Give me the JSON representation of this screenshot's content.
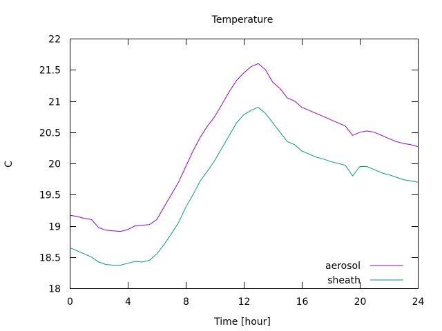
{
  "chart_data": {
    "type": "line",
    "title": "Temperature",
    "xlabel": "Time [hour]",
    "ylabel": "C",
    "xlim": [
      0,
      24
    ],
    "ylim": [
      18,
      22
    ],
    "xticks": [
      0,
      4,
      8,
      12,
      16,
      20,
      24
    ],
    "yticks": [
      18,
      18.5,
      19,
      19.5,
      20,
      20.5,
      21,
      21.5,
      22
    ],
    "grid": false,
    "legend": "bottom-right",
    "series": [
      {
        "name": "aerosol",
        "color": "#9400d3",
        "x": [
          0,
          0.5,
          1,
          1.5,
          2,
          2.5,
          3,
          3.5,
          4,
          4.5,
          5,
          5.5,
          6,
          6.5,
          7,
          7.5,
          8,
          8.5,
          9,
          9.5,
          10,
          10.5,
          11,
          11.5,
          12,
          12.5,
          13,
          13.5,
          14,
          14.5,
          15,
          15.5,
          16,
          16.5,
          17,
          17.5,
          18,
          18.5,
          19,
          19.5,
          20,
          20.5,
          21,
          21.5,
          22,
          22.5,
          23,
          23.5,
          24
        ],
        "values": [
          19.17,
          19.15,
          19.12,
          19.1,
          18.97,
          18.93,
          18.92,
          18.91,
          18.94,
          19.0,
          19.01,
          19.02,
          19.1,
          19.3,
          19.5,
          19.7,
          19.95,
          20.2,
          20.42,
          20.6,
          20.75,
          20.95,
          21.15,
          21.33,
          21.45,
          21.55,
          21.6,
          21.5,
          21.3,
          21.2,
          21.05,
          21.0,
          20.9,
          20.85,
          20.8,
          20.75,
          20.7,
          20.65,
          20.6,
          20.45,
          20.5,
          20.52,
          20.5,
          20.45,
          20.4,
          20.35,
          20.32,
          20.3,
          20.27
        ]
      },
      {
        "name": "sheath",
        "color": "#009e73",
        "x": [
          0,
          0.5,
          1,
          1.5,
          2,
          2.5,
          3,
          3.5,
          4,
          4.5,
          5,
          5.5,
          6,
          6.5,
          7,
          7.5,
          8,
          8.5,
          9,
          9.5,
          10,
          10.5,
          11,
          11.5,
          12,
          12.5,
          13,
          13.5,
          14,
          14.5,
          15,
          15.5,
          16,
          16.5,
          17,
          17.5,
          18,
          18.5,
          19,
          19.5,
          20,
          20.5,
          21,
          21.5,
          22,
          22.5,
          23,
          23.5,
          24
        ],
        "values": [
          18.65,
          18.6,
          18.55,
          18.5,
          18.42,
          18.38,
          18.37,
          18.37,
          18.4,
          18.43,
          18.42,
          18.45,
          18.55,
          18.7,
          18.87,
          19.05,
          19.3,
          19.5,
          19.72,
          19.88,
          20.05,
          20.25,
          20.45,
          20.65,
          20.78,
          20.85,
          20.9,
          20.8,
          20.65,
          20.5,
          20.35,
          20.3,
          20.2,
          20.15,
          20.1,
          20.07,
          20.03,
          20.0,
          19.97,
          19.8,
          19.95,
          19.95,
          19.9,
          19.85,
          19.82,
          19.78,
          19.74,
          19.72,
          19.7
        ]
      }
    ]
  }
}
